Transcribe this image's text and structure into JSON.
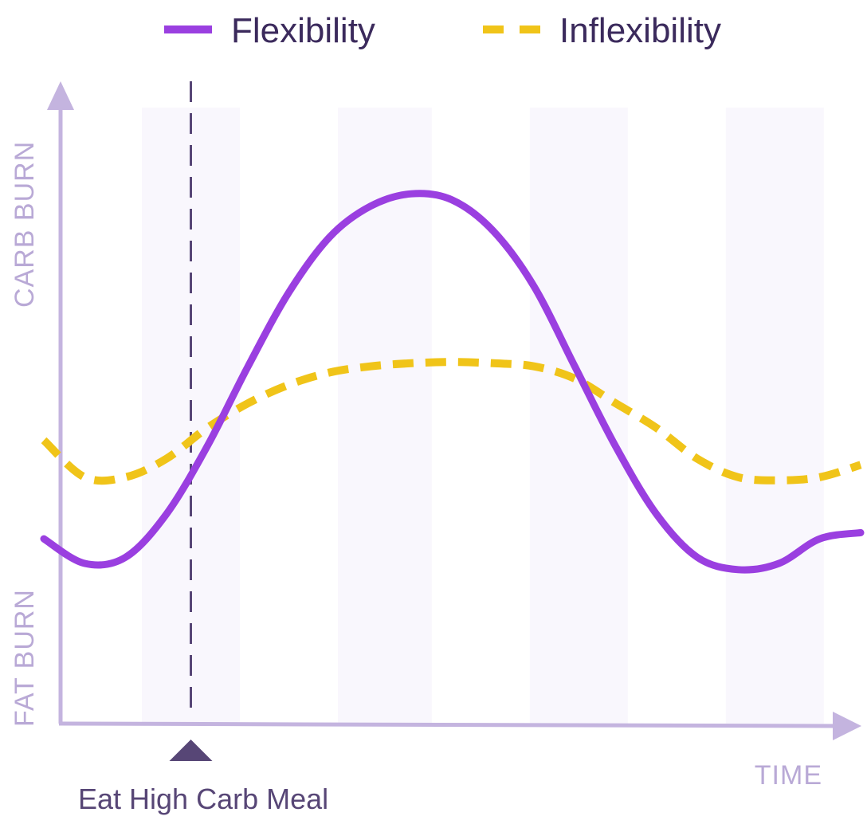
{
  "chart_data": {
    "type": "line",
    "title": "",
    "xlabel": "TIME",
    "ylabel_top": "CARB BURN",
    "ylabel_bottom": "FAT BURN",
    "x": [
      0,
      5,
      10,
      15,
      20,
      25,
      30,
      35,
      40,
      45,
      50,
      55,
      60,
      65,
      70,
      75,
      80,
      85,
      90,
      95,
      100
    ],
    "xlim": [
      0,
      100
    ],
    "ylim": [
      0,
      100
    ],
    "ticks_shown": false,
    "series": [
      {
        "name": "Flexibility",
        "style": "solid",
        "color": "#9a3fe0",
        "values": [
          30,
          26,
          27,
          34,
          45,
          58,
          70,
          79,
          84,
          86,
          85,
          80,
          71,
          58,
          45,
          34,
          27,
          25,
          26,
          30,
          31
        ]
      },
      {
        "name": "Inflexibility",
        "style": "dashed",
        "color": "#f0c419",
        "values": [
          46,
          40,
          40,
          43,
          48,
          52,
          55,
          57,
          58,
          58.5,
          58.7,
          58.5,
          58,
          56,
          52,
          48,
          43,
          40,
          39.5,
          40,
          42
        ]
      }
    ],
    "legend": {
      "position": "top",
      "entries": [
        {
          "label": "Flexibility",
          "style": "solid",
          "color": "#9a3fe0"
        },
        {
          "label": "Inflexibility",
          "style": "dashed",
          "color": "#f0c419"
        }
      ]
    },
    "background_bands_x": [
      [
        12,
        24
      ],
      [
        36,
        47.5
      ],
      [
        59.5,
        71.5
      ],
      [
        83.5,
        95.5
      ]
    ],
    "annotation": {
      "x": 18,
      "label": "Eat High Carb Meal",
      "line_style": "dashed",
      "color": "#574676"
    },
    "colors": {
      "axis": "#c4b4df",
      "band": "#f9f7fd",
      "axis_text": "#b9a9d6",
      "legend_text": "#3b2a5c"
    }
  }
}
